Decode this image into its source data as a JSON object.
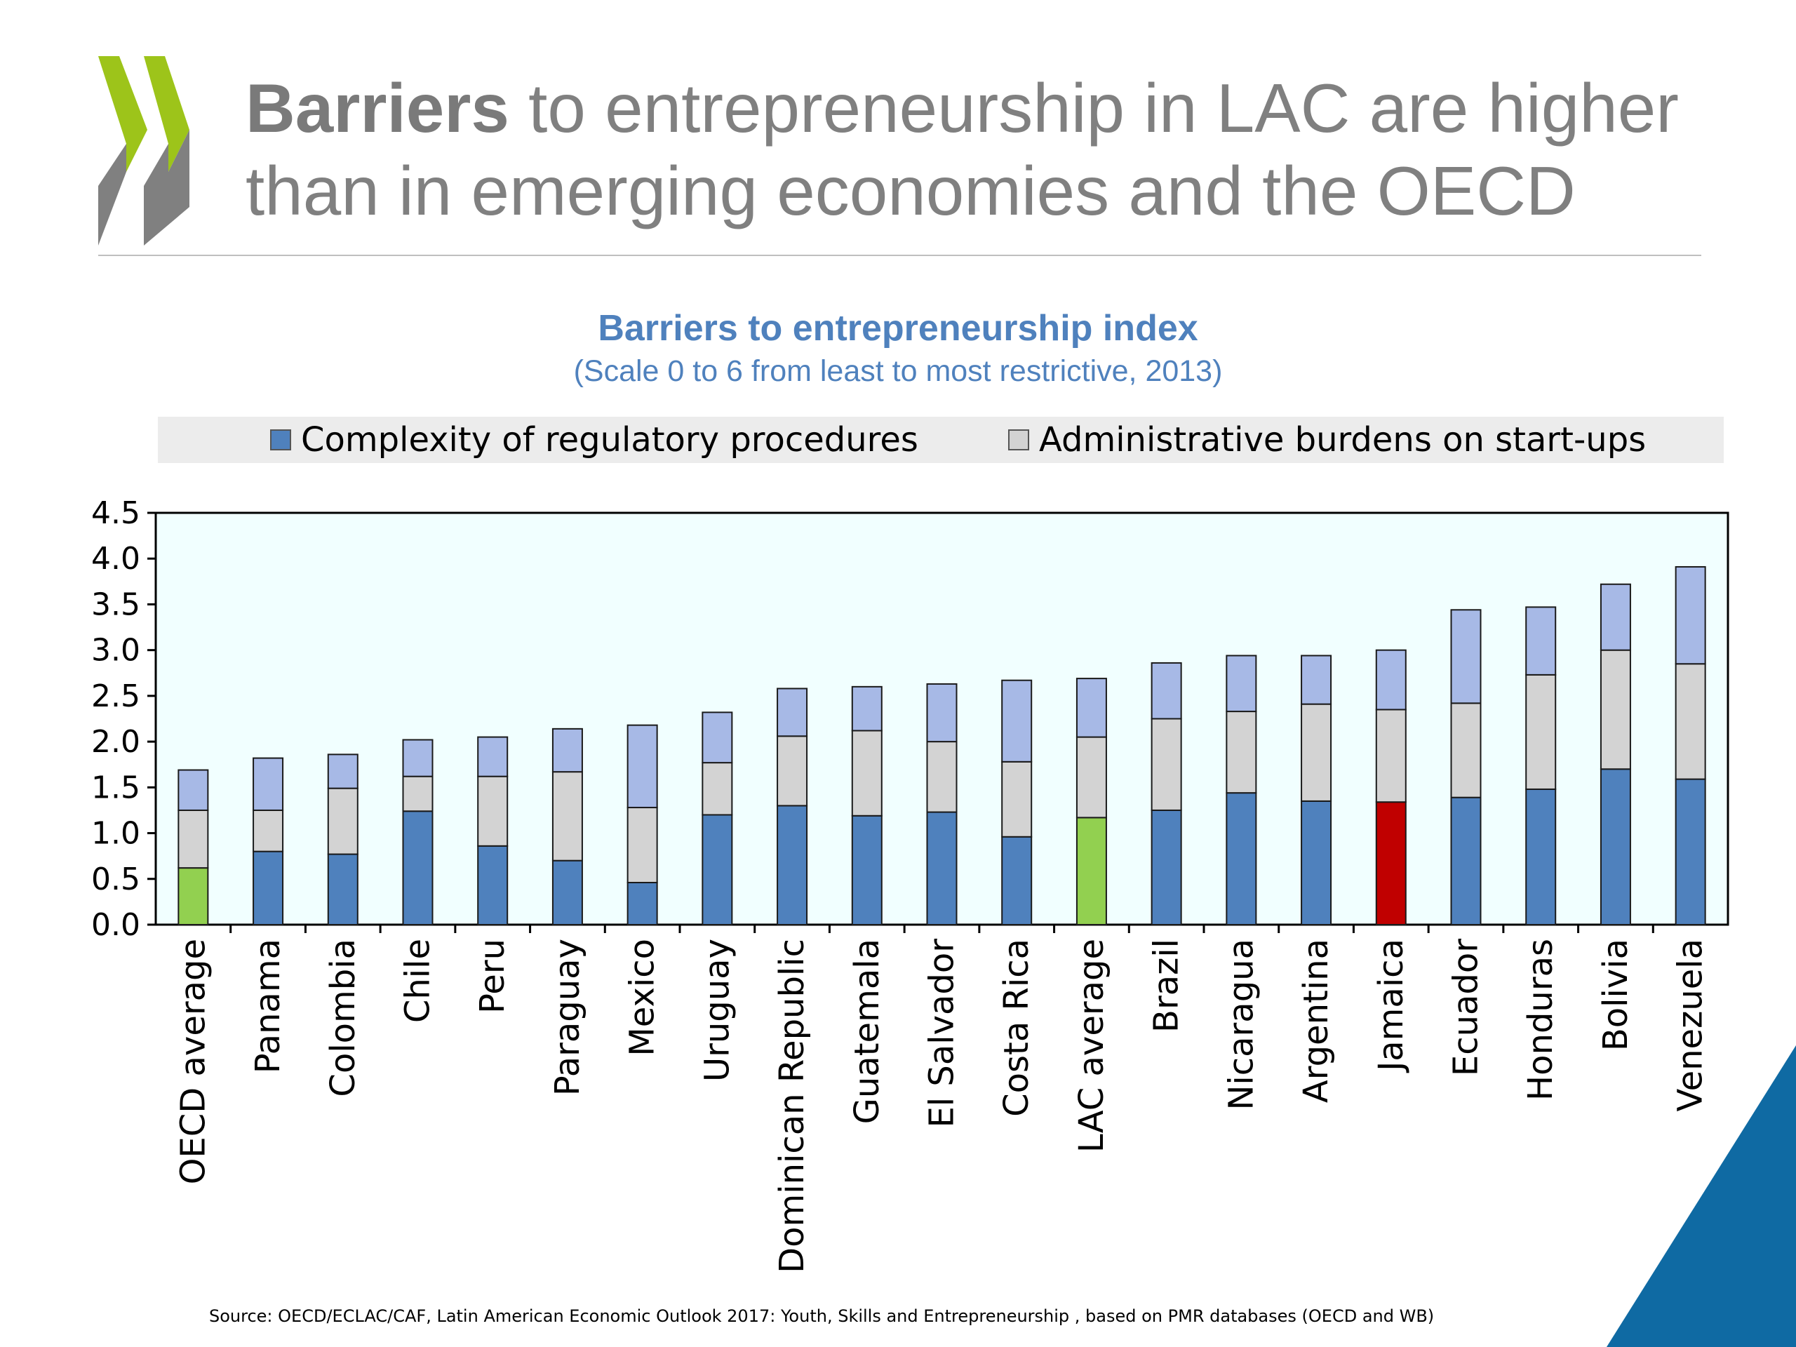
{
  "slide": {
    "title_bold": "Barriers",
    "title_rest": " to entrepreneurship in LAC are higher than in emerging economies and the OECD",
    "source": "Source: OECD/ECLAC/CAF, Latin American Economic Outlook 2017: Youth, Skills and Entrepreneurship , based on PMR databases (OECD and WB)"
  },
  "chart_data": {
    "type": "bar",
    "stacked": true,
    "title": "Barriers to entrepreneurship index",
    "subtitle": "(Scale 0 to 6 from least to most restrictive, 2013)",
    "xlabel": "",
    "ylabel": "",
    "ylim": [
      0,
      4.5
    ],
    "yticks": [
      "0.0",
      "0.5",
      "1.0",
      "1.5",
      "2.0",
      "2.5",
      "3.0",
      "3.5",
      "4.0",
      "4.5"
    ],
    "legend_position": "top",
    "grid": false,
    "categories": [
      "OECD average",
      "Panama",
      "Colombia",
      "Chile",
      "Peru",
      "Paraguay",
      "Mexico",
      "Uruguay",
      "Dominican Republic",
      "Guatemala",
      "El Salvador",
      "Costa Rica",
      "LAC average",
      "Brazil",
      "Nicaragua",
      "Argentina",
      "Jamaica",
      "Ecuador",
      "Honduras",
      "Bolivia",
      "Venezuela"
    ],
    "legend": [
      {
        "label": "Complexity of regulatory procedures",
        "color": "#4f81bd"
      },
      {
        "label": "Administrative burdens on start-ups",
        "color": "#d3d3d3"
      }
    ],
    "series": [
      {
        "name": "Complexity of regulatory procedures",
        "color": "#4f81bd",
        "values": [
          0.62,
          0.8,
          0.77,
          1.24,
          0.86,
          0.7,
          0.46,
          1.2,
          1.3,
          1.19,
          1.23,
          0.96,
          1.17,
          1.25,
          1.44,
          1.35,
          1.34,
          1.39,
          1.48,
          1.7,
          1.59
        ]
      },
      {
        "name": "Administrative burdens on start-ups",
        "color": "#d3d3d3",
        "values": [
          0.63,
          0.45,
          0.72,
          0.38,
          0.76,
          0.97,
          0.82,
          0.57,
          0.76,
          0.93,
          0.77,
          0.82,
          0.88,
          1.0,
          0.89,
          1.06,
          1.01,
          1.03,
          1.25,
          1.3,
          1.26
        ]
      },
      {
        "name": "",
        "color": "#a7b9e6",
        "values": [
          0.44,
          0.57,
          0.37,
          0.4,
          0.43,
          0.47,
          0.9,
          0.55,
          0.52,
          0.48,
          0.63,
          0.89,
          0.64,
          0.61,
          0.61,
          0.53,
          0.65,
          1.02,
          0.74,
          0.72,
          1.06
        ]
      }
    ],
    "highlight_colors": {
      "OECD average": "#92d050",
      "LAC average": "#92d050",
      "Jamaica": "#c00000"
    },
    "plot_background": "#f1ffff"
  }
}
